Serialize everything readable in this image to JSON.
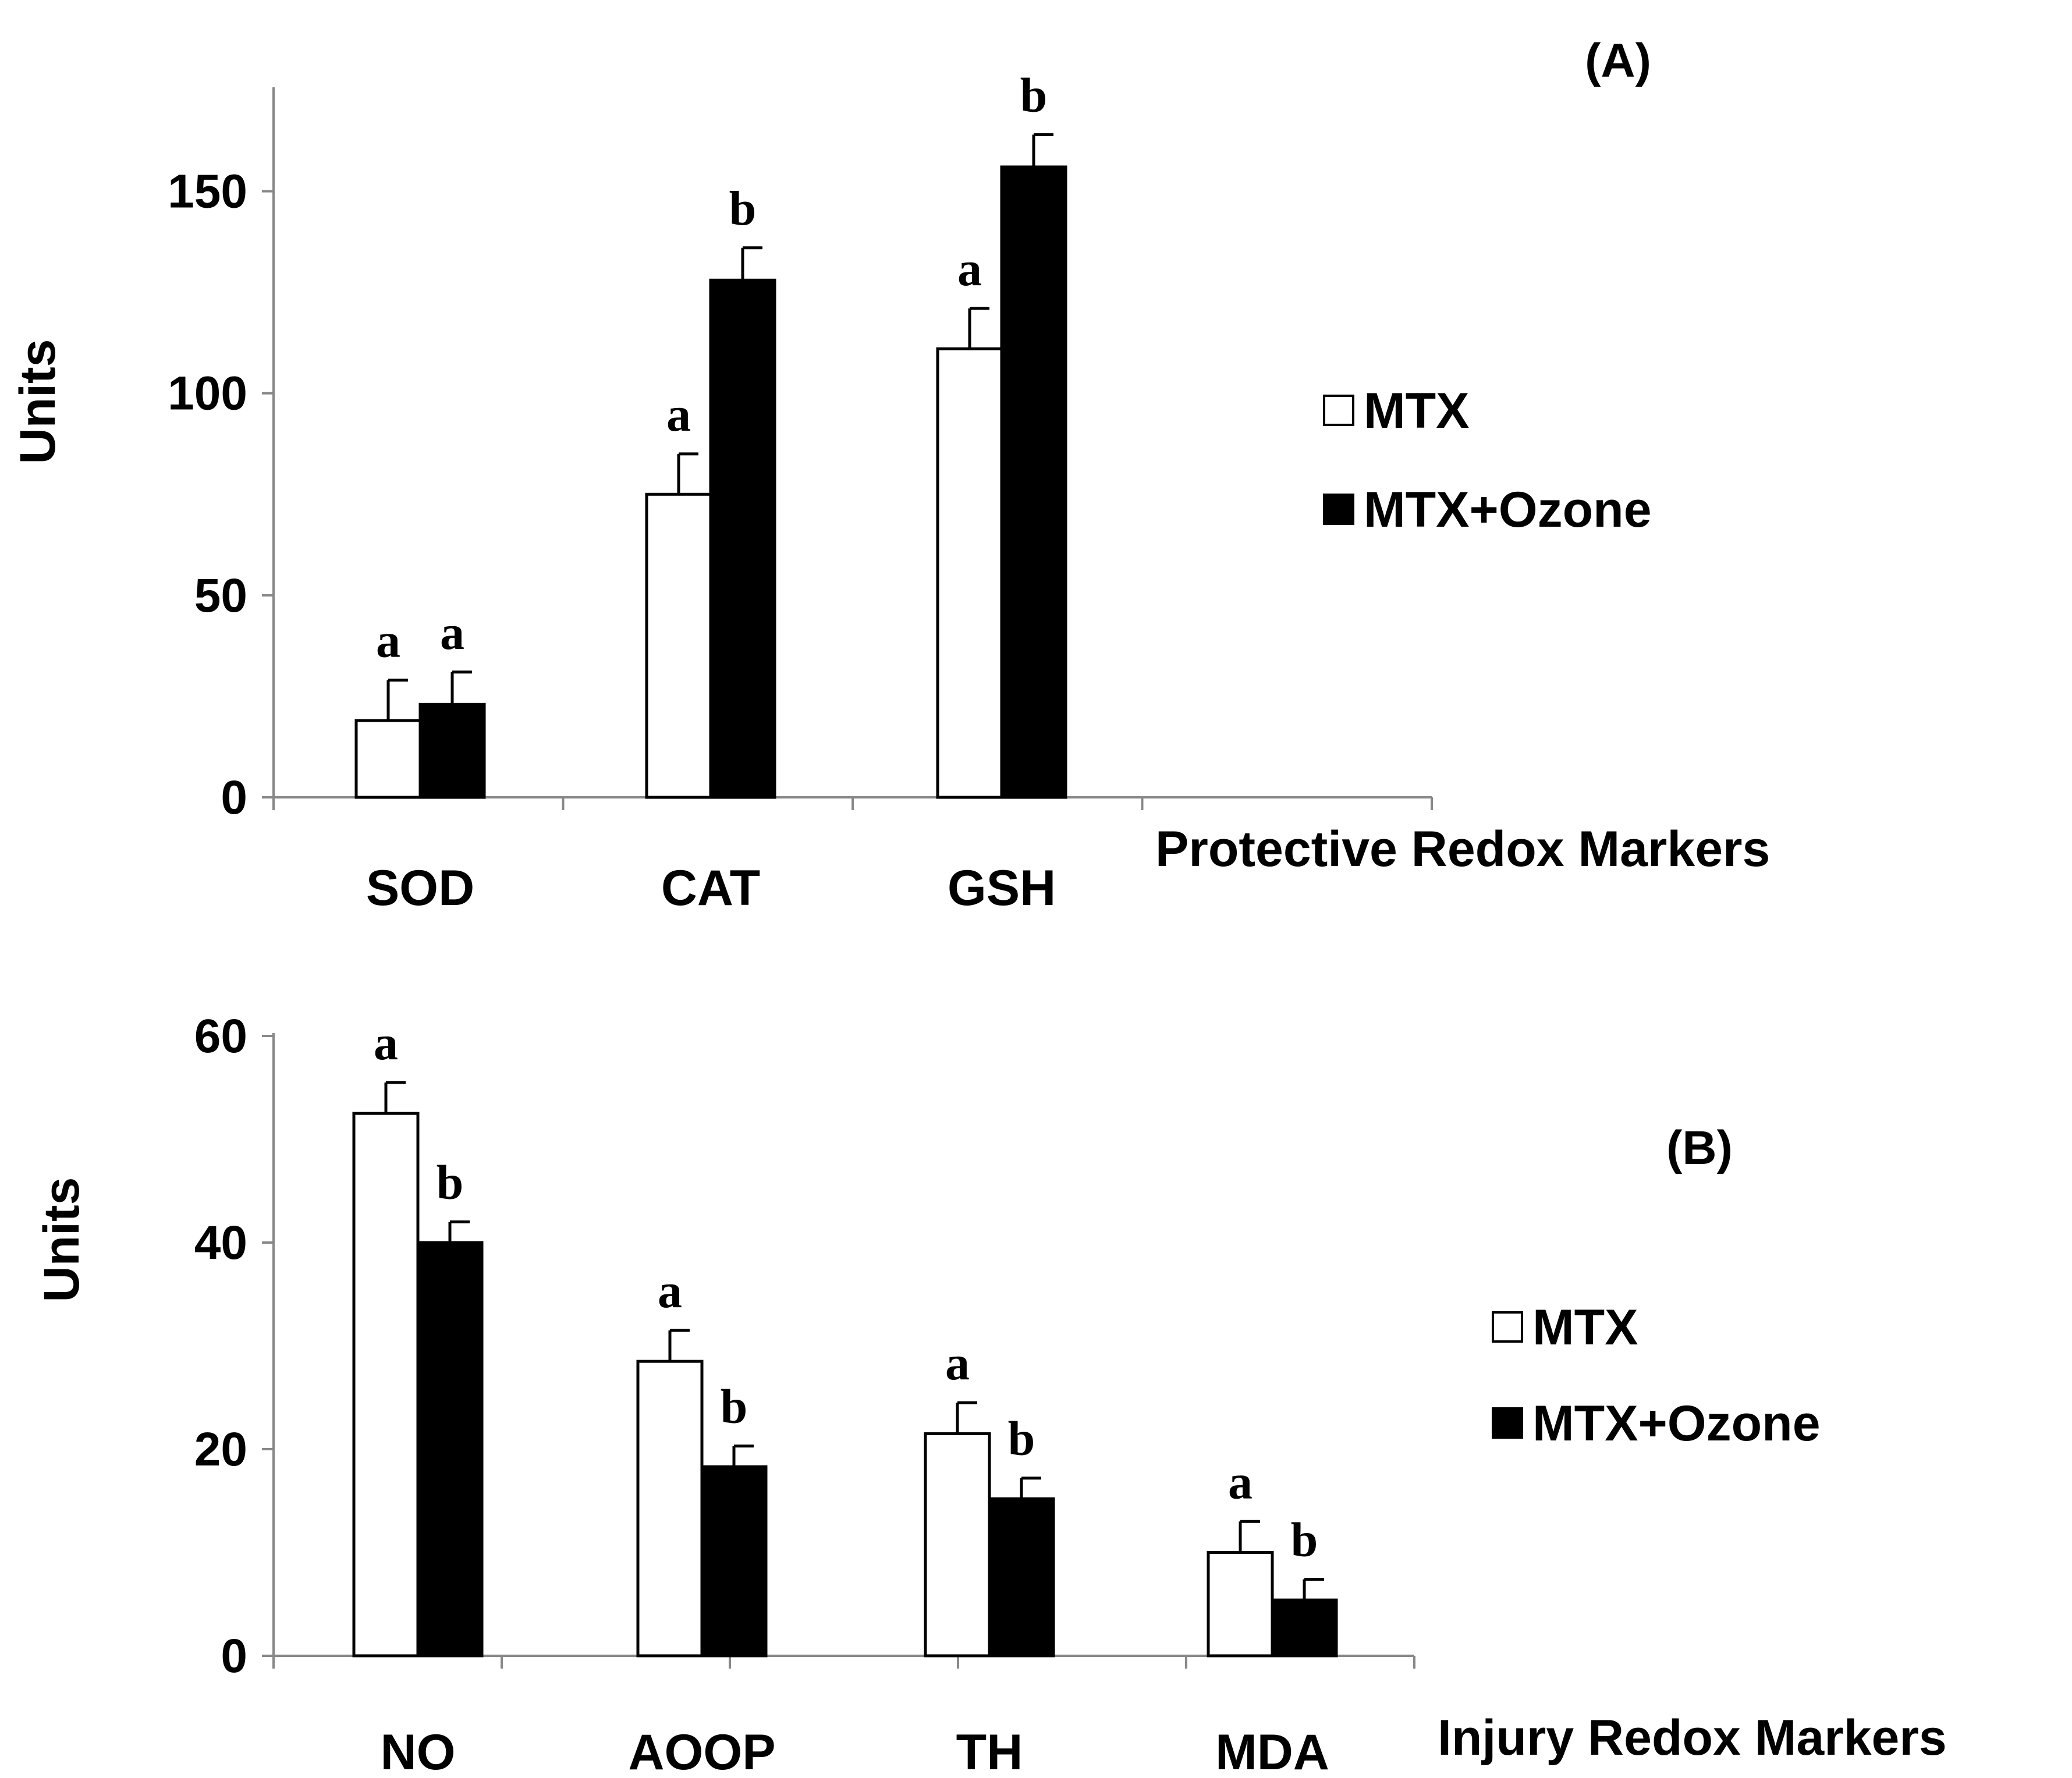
{
  "chart_data": [
    {
      "type": "bar",
      "panel_label": "(A)",
      "ylabel": "Units",
      "xlabel": "Protective Redox Markers",
      "categories": [
        "SOD",
        "CAT",
        "GSH"
      ],
      "ylim": [
        0,
        175
      ],
      "yticks": [
        0,
        50,
        100,
        150
      ],
      "series": [
        {
          "name": "MTX",
          "fill": "#ffffff",
          "values": [
            19,
            75,
            111
          ],
          "errors": [
            10,
            10,
            10
          ],
          "significance": [
            "a",
            "a",
            "a"
          ]
        },
        {
          "name": "MTX+Ozone",
          "fill": "#000000",
          "values": [
            23,
            128,
            156
          ],
          "errors": [
            8,
            8,
            8
          ],
          "significance": [
            "a",
            "b",
            "b"
          ]
        }
      ],
      "legend": [
        "MTX",
        "MTX+Ozone"
      ],
      "legend_position": "right"
    },
    {
      "type": "bar",
      "panel_label": "(B)",
      "ylabel": "Units",
      "xlabel": "Injury  Redox Markers",
      "categories": [
        "NO",
        "AOOP",
        "TH",
        "MDA"
      ],
      "ylim": [
        0,
        60
      ],
      "yticks": [
        0,
        20,
        40,
        60
      ],
      "series": [
        {
          "name": "MTX",
          "fill": "#ffffff",
          "values": [
            52.5,
            28.5,
            21.5,
            10
          ],
          "errors": [
            3,
            3,
            3,
            3
          ],
          "significance": [
            "a",
            "a",
            "a",
            "a"
          ]
        },
        {
          "name": "MTX+Ozone",
          "fill": "#000000",
          "values": [
            40,
            18.3,
            15.2,
            5.4
          ],
          "errors": [
            2,
            2,
            2,
            2
          ],
          "significance": [
            "b",
            "b",
            "b",
            "b"
          ]
        }
      ],
      "legend": [
        "MTX",
        "MTX+Ozone"
      ],
      "legend_position": "right"
    }
  ]
}
